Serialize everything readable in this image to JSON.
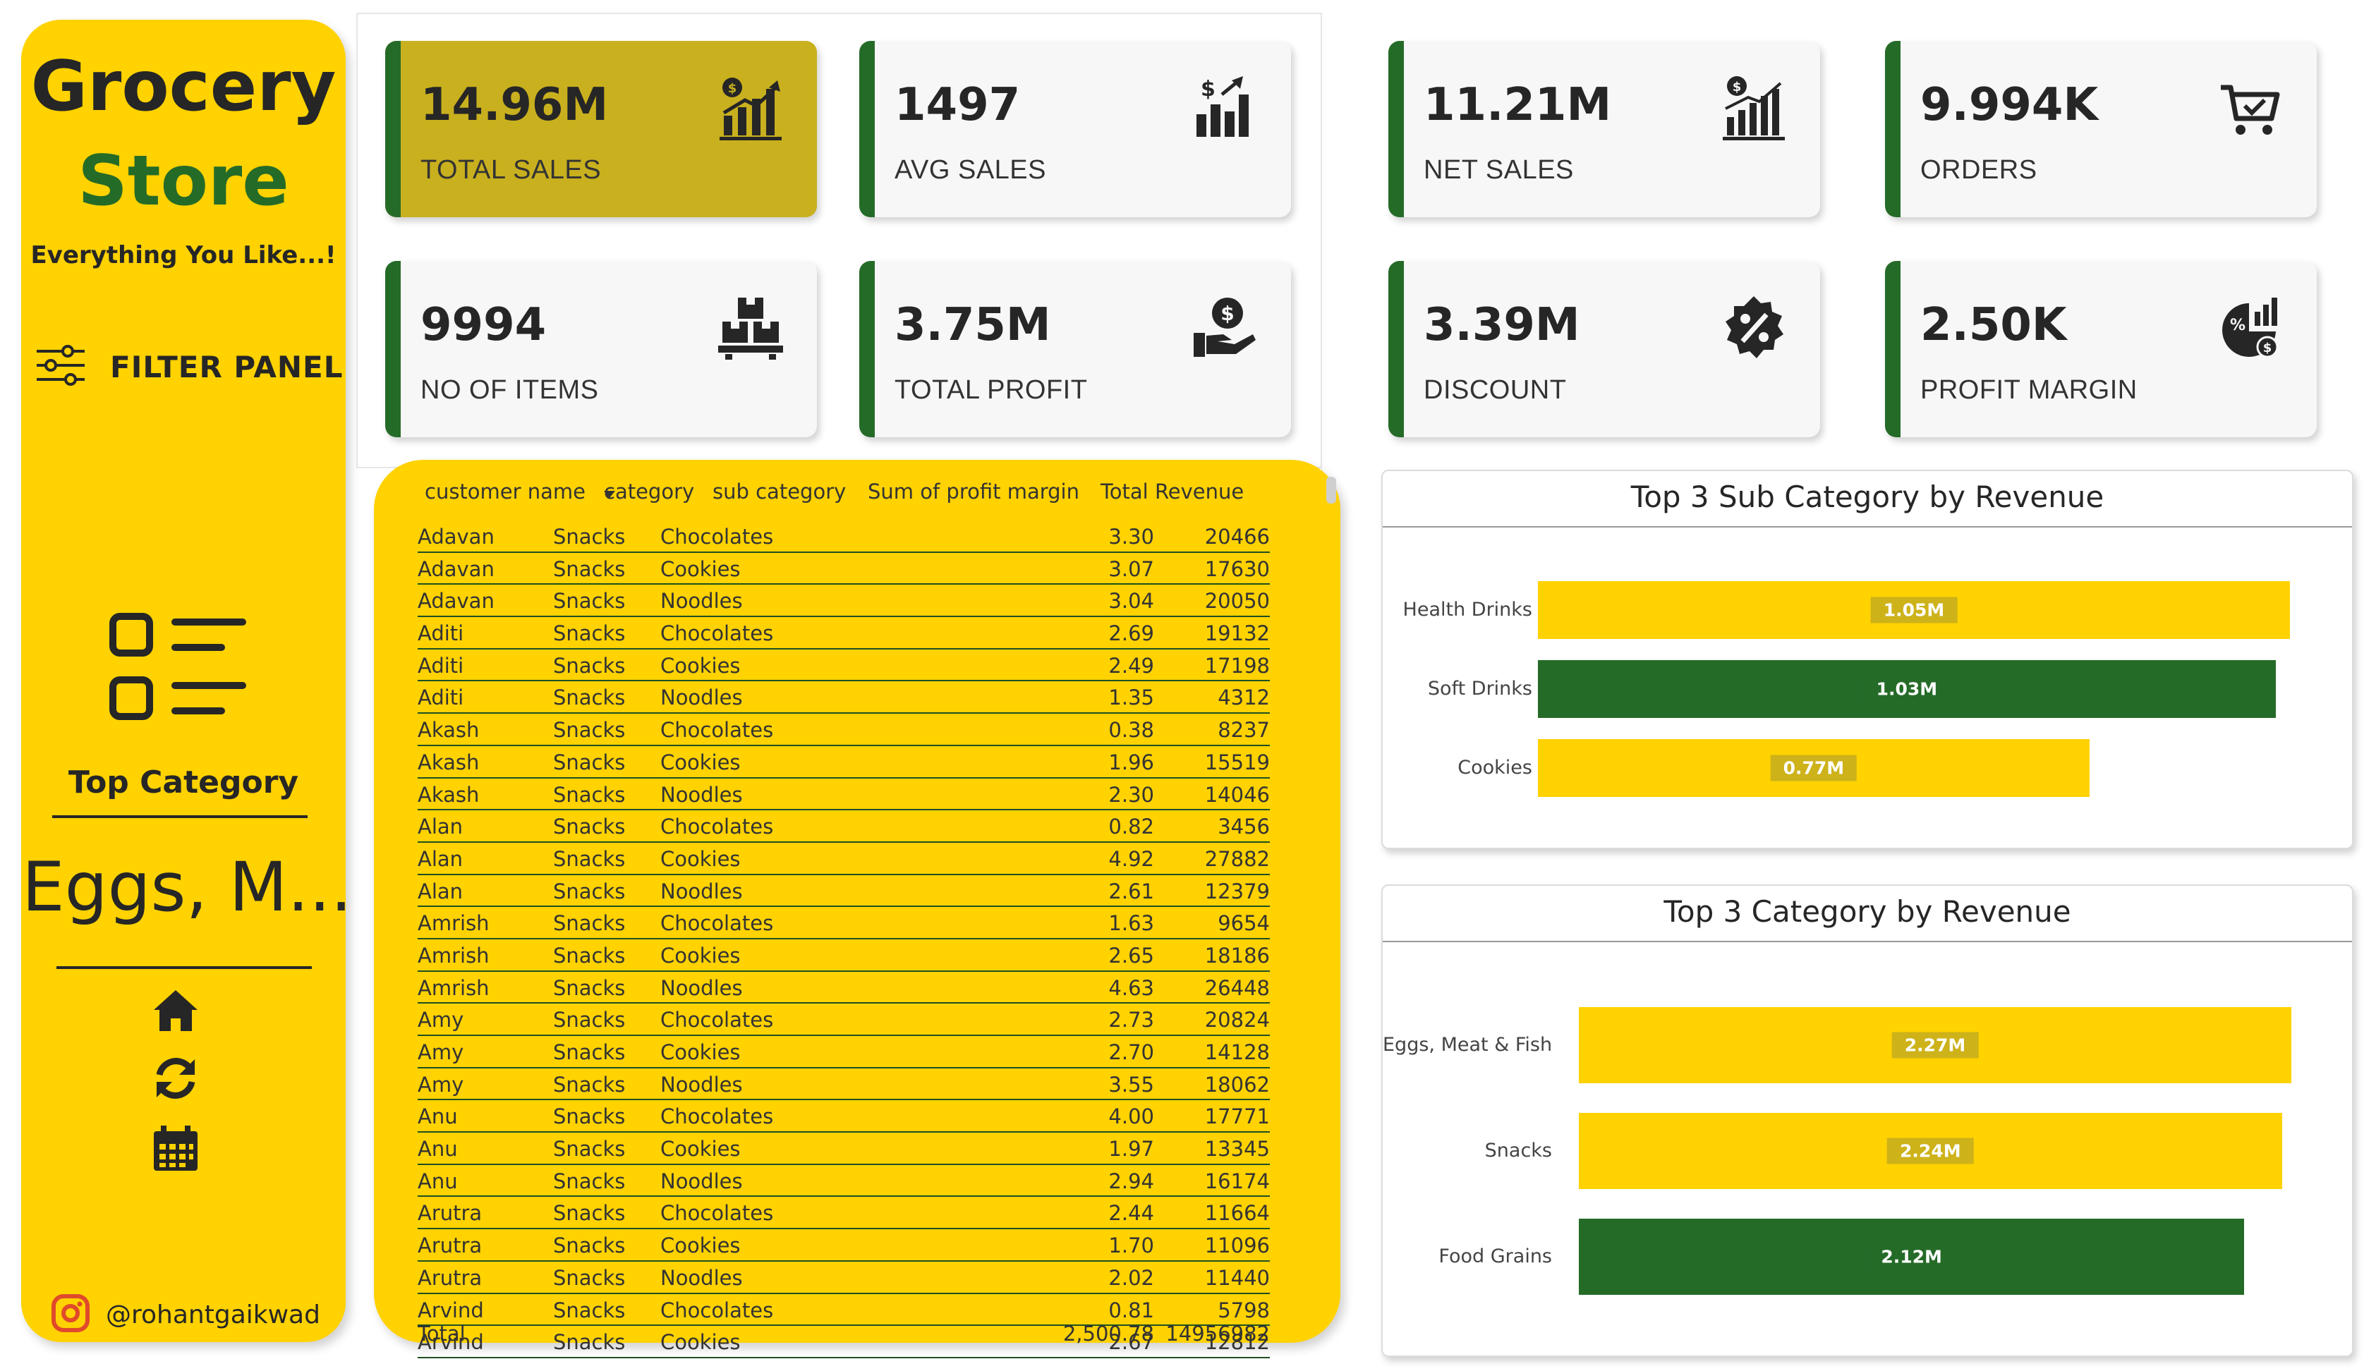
{
  "brand": {
    "line1": "Grocery",
    "line2": "Store",
    "tagline": "Everything You Like...!"
  },
  "filter_panel": {
    "label": "FILTER PANEL",
    "icon": "sliders-icon"
  },
  "top_category": {
    "label": "Top Category",
    "value": "Eggs, M..."
  },
  "nav_icons": [
    "home-icon",
    "refresh-icon",
    "calendar-icon"
  ],
  "social": {
    "handle": "@rohantgaikwad",
    "icon": "instagram-icon"
  },
  "colors": {
    "yellow": "#FFD200",
    "green": "#256B28",
    "highlight": "#C9B01E",
    "dark": "#262626"
  },
  "kpis": [
    {
      "value": "14.96M",
      "label": "TOTAL SALES",
      "icon": "sales-chart-icon",
      "highlighted": true
    },
    {
      "value": "1497",
      "label": "AVG SALES",
      "icon": "dollar-bars-icon"
    },
    {
      "value": "11.21M",
      "label": "NET SALES",
      "icon": "net-sales-icon"
    },
    {
      "value": "9.994K",
      "label": "ORDERS",
      "icon": "cart-icon"
    },
    {
      "value": "9994",
      "label": "NO OF ITEMS",
      "icon": "boxes-icon"
    },
    {
      "value": "3.75M",
      "label": "TOTAL PROFIT",
      "icon": "hand-dollar-icon"
    },
    {
      "value": "3.39M",
      "label": "DISCOUNT",
      "icon": "percent-badge-icon"
    },
    {
      "value": "2.50K",
      "label": "PROFIT MARGIN",
      "icon": "profit-margin-icon"
    }
  ],
  "table": {
    "columns": [
      "customer name",
      "category",
      "sub category",
      "Sum of profit margin",
      "Total Revenue"
    ],
    "rows": [
      [
        "Adavan",
        "Snacks",
        "Chocolates",
        "3.30",
        "20466"
      ],
      [
        "Adavan",
        "Snacks",
        "Cookies",
        "3.07",
        "17630"
      ],
      [
        "Adavan",
        "Snacks",
        "Noodles",
        "3.04",
        "20050"
      ],
      [
        "Aditi",
        "Snacks",
        "Chocolates",
        "2.69",
        "19132"
      ],
      [
        "Aditi",
        "Snacks",
        "Cookies",
        "2.49",
        "17198"
      ],
      [
        "Aditi",
        "Snacks",
        "Noodles",
        "1.35",
        "4312"
      ],
      [
        "Akash",
        "Snacks",
        "Chocolates",
        "0.38",
        "8237"
      ],
      [
        "Akash",
        "Snacks",
        "Cookies",
        "1.96",
        "15519"
      ],
      [
        "Akash",
        "Snacks",
        "Noodles",
        "2.30",
        "14046"
      ],
      [
        "Alan",
        "Snacks",
        "Chocolates",
        "0.82",
        "3456"
      ],
      [
        "Alan",
        "Snacks",
        "Cookies",
        "4.92",
        "27882"
      ],
      [
        "Alan",
        "Snacks",
        "Noodles",
        "2.61",
        "12379"
      ],
      [
        "Amrish",
        "Snacks",
        "Chocolates",
        "1.63",
        "9654"
      ],
      [
        "Amrish",
        "Snacks",
        "Cookies",
        "2.65",
        "18186"
      ],
      [
        "Amrish",
        "Snacks",
        "Noodles",
        "4.63",
        "26448"
      ],
      [
        "Amy",
        "Snacks",
        "Chocolates",
        "2.73",
        "20824"
      ],
      [
        "Amy",
        "Snacks",
        "Cookies",
        "2.70",
        "14128"
      ],
      [
        "Amy",
        "Snacks",
        "Noodles",
        "3.55",
        "18062"
      ],
      [
        "Anu",
        "Snacks",
        "Chocolates",
        "4.00",
        "17771"
      ],
      [
        "Anu",
        "Snacks",
        "Cookies",
        "1.97",
        "13345"
      ],
      [
        "Anu",
        "Snacks",
        "Noodles",
        "2.94",
        "16174"
      ],
      [
        "Arutra",
        "Snacks",
        "Chocolates",
        "2.44",
        "11664"
      ],
      [
        "Arutra",
        "Snacks",
        "Cookies",
        "1.70",
        "11096"
      ],
      [
        "Arutra",
        "Snacks",
        "Noodles",
        "2.02",
        "11440"
      ],
      [
        "Arvind",
        "Snacks",
        "Chocolates",
        "0.81",
        "5798"
      ],
      [
        "Arvind",
        "Snacks",
        "Cookies",
        "2.67",
        "12812"
      ]
    ],
    "total": {
      "label": "Total",
      "profit_margin": "2,500.78",
      "revenue": "14956982"
    }
  },
  "chart_data": [
    {
      "type": "bar",
      "orientation": "horizontal",
      "title": "Top 3 Sub Category by Revenue",
      "categories": [
        "Health Drinks",
        "Soft Drinks",
        "Cookies"
      ],
      "values": [
        1.05,
        1.03,
        0.77
      ],
      "value_labels": [
        "1.05M",
        "1.03M",
        "0.77M"
      ],
      "bar_colors": [
        "#FFD200",
        "#256B28",
        "#FFD200"
      ],
      "units": "M",
      "xlim": [
        0,
        1.05
      ]
    },
    {
      "type": "bar",
      "orientation": "horizontal",
      "title": "Top 3 Category by Revenue",
      "categories": [
        "Eggs, Meat & Fish",
        "Snacks",
        "Food Grains"
      ],
      "values": [
        2.27,
        2.24,
        2.12
      ],
      "value_labels": [
        "2.27M",
        "2.24M",
        "2.12M"
      ],
      "bar_colors": [
        "#FFD200",
        "#FFD200",
        "#256B28"
      ],
      "units": "M",
      "xlim": [
        0,
        2.27
      ]
    }
  ]
}
